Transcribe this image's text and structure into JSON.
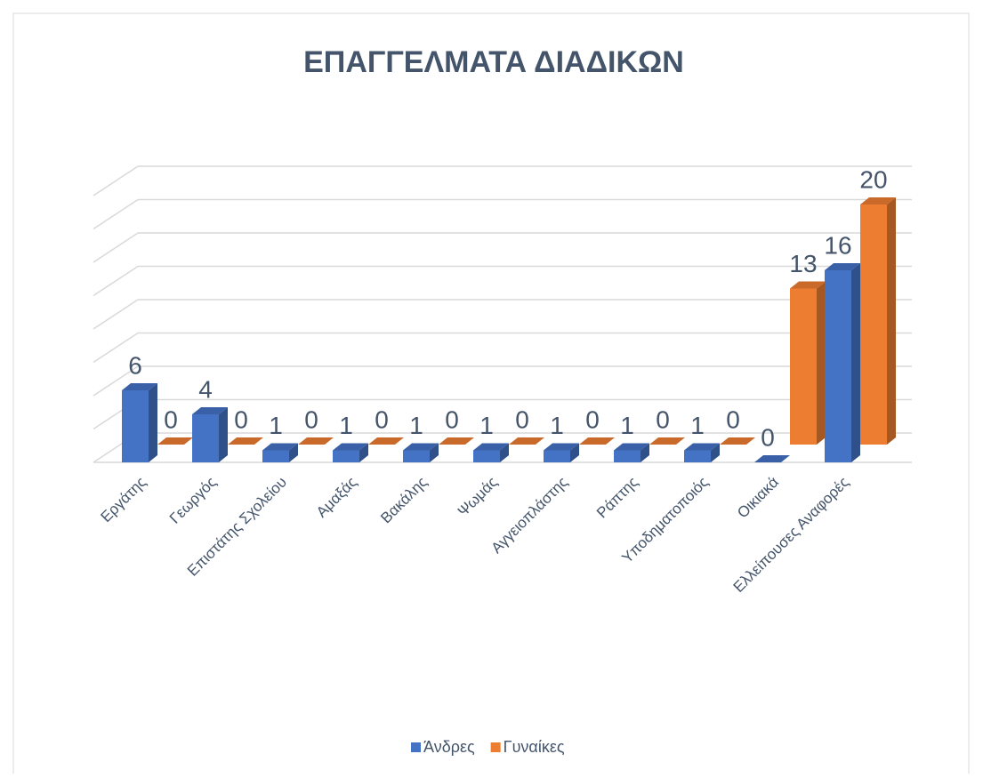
{
  "chart_data": {
    "type": "bar3d",
    "title": "ΕΠΑΓΓΕΛΜΑΤΑ ΔΙΑΔΙΚΩΝ",
    "categories": [
      "Εργάτης",
      "Γεωργός",
      "Επιστάτης Σχολείου",
      "Αμαξάς",
      "Βακάλης",
      "Ψωμάς",
      "Αγγειοπλάστης",
      "Ράπτης",
      "Υποδηματοποιός",
      "Οικιακά",
      "Ελλείπουσες Αναφορές"
    ],
    "series": [
      {
        "name": "Άνδρες",
        "color": "#4472c4",
        "values": [
          6,
          4,
          1,
          1,
          1,
          1,
          1,
          1,
          1,
          0,
          16
        ]
      },
      {
        "name": "Γυναίκες",
        "color": "#ed7d31",
        "values": [
          0,
          0,
          0,
          0,
          0,
          0,
          0,
          0,
          0,
          13,
          20
        ]
      }
    ],
    "ylim": [
      0,
      24
    ],
    "yticks": [
      0,
      3,
      6,
      9,
      12,
      15,
      18,
      21,
      24
    ],
    "grid": true,
    "legend": "bottom"
  }
}
